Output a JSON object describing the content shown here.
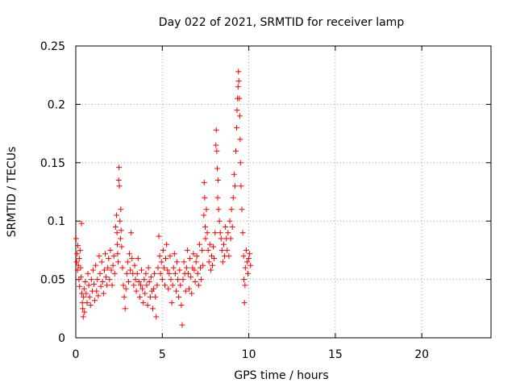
{
  "chart_data": {
    "type": "scatter",
    "title": "Day 022 of 2021, SRMTID for receiver lamp",
    "xlabel": "GPS time / hours",
    "ylabel": "SRMTID / TECUs",
    "xlim": [
      0,
      24
    ],
    "ylim": [
      0,
      0.25
    ],
    "x_ticks": [
      0,
      5,
      10,
      15,
      20
    ],
    "y_ticks": [
      0,
      0.05,
      0.1,
      0.15,
      0.2,
      0.25
    ],
    "x_tick_labels": [
      "0",
      "5",
      "10",
      "15",
      "20"
    ],
    "y_tick_labels": [
      "0",
      "0.05",
      "0.1",
      "0.15",
      "0.2",
      "0.25"
    ],
    "grid": true,
    "marker": "+",
    "color": "#ff0000",
    "series": [
      {
        "name": "SRMTID",
        "points": [
          [
            0.02,
            0.085
          ],
          [
            0.05,
            0.065
          ],
          [
            0.08,
            0.072
          ],
          [
            0.1,
            0.058
          ],
          [
            0.12,
            0.079
          ],
          [
            0.15,
            0.062
          ],
          [
            0.18,
            0.05
          ],
          [
            0.2,
            0.068
          ],
          [
            0.22,
            0.044
          ],
          [
            0.25,
            0.075
          ],
          [
            0.28,
            0.06
          ],
          [
            0.3,
            0.052
          ],
          [
            0.33,
            0.098
          ],
          [
            0.35,
            0.038
          ],
          [
            0.38,
            0.03
          ],
          [
            0.4,
            0.025
          ],
          [
            0.43,
            0.018
          ],
          [
            0.45,
            0.035
          ],
          [
            0.48,
            0.042
          ],
          [
            0.5,
            0.022
          ],
          [
            0.55,
            0.048
          ],
          [
            0.6,
            0.038
          ],
          [
            0.65,
            0.03
          ],
          [
            0.7,
            0.055
          ],
          [
            0.75,
            0.045
          ],
          [
            0.8,
            0.035
          ],
          [
            0.85,
            0.028
          ],
          [
            0.9,
            0.05
          ],
          [
            0.95,
            0.04
          ],
          [
            1.0,
            0.058
          ],
          [
            1.05,
            0.046
          ],
          [
            1.1,
            0.032
          ],
          [
            1.15,
            0.062
          ],
          [
            1.2,
            0.04
          ],
          [
            1.25,
            0.05
          ],
          [
            1.3,
            0.036
          ],
          [
            1.35,
            0.07
          ],
          [
            1.4,
            0.055
          ],
          [
            1.45,
            0.044
          ],
          [
            1.5,
            0.065
          ],
          [
            1.55,
            0.048
          ],
          [
            1.6,
            0.038
          ],
          [
            1.65,
            0.058
          ],
          [
            1.7,
            0.072
          ],
          [
            1.75,
            0.052
          ],
          [
            1.8,
            0.045
          ],
          [
            1.85,
            0.06
          ],
          [
            1.9,
            0.068
          ],
          [
            1.95,
            0.05
          ],
          [
            2.0,
            0.075
          ],
          [
            2.05,
            0.058
          ],
          [
            2.1,
            0.045
          ],
          [
            2.15,
            0.062
          ],
          [
            2.2,
            0.07
          ],
          [
            2.25,
            0.055
          ],
          [
            2.3,
            0.095
          ],
          [
            2.35,
            0.105
          ],
          [
            2.38,
            0.09
          ],
          [
            2.4,
            0.08
          ],
          [
            2.42,
            0.072
          ],
          [
            2.45,
            0.065
          ],
          [
            2.48,
            0.135
          ],
          [
            2.5,
            0.146
          ],
          [
            2.52,
            0.13
          ],
          [
            2.55,
            0.1
          ],
          [
            2.58,
            0.085
          ],
          [
            2.6,
            0.11
          ],
          [
            2.62,
            0.092
          ],
          [
            2.65,
            0.078
          ],
          [
            2.7,
            0.06
          ],
          [
            2.75,
            0.045
          ],
          [
            2.8,
            0.035
          ],
          [
            2.85,
            0.025
          ],
          [
            2.9,
            0.042
          ],
          [
            2.95,
            0.055
          ],
          [
            3.0,
            0.065
          ],
          [
            3.05,
            0.048
          ],
          [
            3.1,
            0.072
          ],
          [
            3.15,
            0.058
          ],
          [
            3.2,
            0.09
          ],
          [
            3.25,
            0.068
          ],
          [
            3.3,
            0.055
          ],
          [
            3.35,
            0.045
          ],
          [
            3.4,
            0.062
          ],
          [
            3.45,
            0.05
          ],
          [
            3.5,
            0.04
          ],
          [
            3.55,
            0.055
          ],
          [
            3.6,
            0.068
          ],
          [
            3.65,
            0.048
          ],
          [
            3.7,
            0.035
          ],
          [
            3.75,
            0.045
          ],
          [
            3.8,
            0.058
          ],
          [
            3.85,
            0.042
          ],
          [
            3.9,
            0.03
          ],
          [
            3.95,
            0.05
          ],
          [
            4.0,
            0.038
          ],
          [
            4.05,
            0.055
          ],
          [
            4.1,
            0.045
          ],
          [
            4.15,
            0.028
          ],
          [
            4.2,
            0.06
          ],
          [
            4.25,
            0.048
          ],
          [
            4.3,
            0.035
          ],
          [
            4.35,
            0.052
          ],
          [
            4.4,
            0.04
          ],
          [
            4.45,
            0.025
          ],
          [
            4.5,
            0.042
          ],
          [
            4.55,
            0.055
          ],
          [
            4.6,
            0.035
          ],
          [
            4.65,
            0.018
          ],
          [
            4.7,
            0.045
          ],
          [
            4.75,
            0.06
          ],
          [
            4.8,
            0.087
          ],
          [
            4.85,
            0.07
          ],
          [
            4.9,
            0.055
          ],
          [
            4.95,
            0.065
          ],
          [
            5.0,
            0.05
          ],
          [
            5.05,
            0.075
          ],
          [
            5.1,
            0.06
          ],
          [
            5.15,
            0.045
          ],
          [
            5.2,
            0.068
          ],
          [
            5.25,
            0.08
          ],
          [
            5.3,
            0.058
          ],
          [
            5.35,
            0.042
          ],
          [
            5.4,
            0.055
          ],
          [
            5.45,
            0.07
          ],
          [
            5.5,
            0.05
          ],
          [
            5.55,
            0.03
          ],
          [
            5.6,
            0.045
          ],
          [
            5.65,
            0.06
          ],
          [
            5.7,
            0.072
          ],
          [
            5.75,
            0.055
          ],
          [
            5.8,
            0.04
          ],
          [
            5.85,
            0.065
          ],
          [
            5.9,
            0.05
          ],
          [
            5.95,
            0.035
          ],
          [
            6.0,
            0.058
          ],
          [
            6.05,
            0.045
          ],
          [
            6.1,
            0.028
          ],
          [
            6.15,
            0.011
          ],
          [
            6.2,
            0.05
          ],
          [
            6.25,
            0.065
          ],
          [
            6.3,
            0.055
          ],
          [
            6.35,
            0.04
          ],
          [
            6.4,
            0.06
          ],
          [
            6.45,
            0.075
          ],
          [
            6.5,
            0.055
          ],
          [
            6.55,
            0.042
          ],
          [
            6.6,
            0.068
          ],
          [
            6.65,
            0.052
          ],
          [
            6.7,
            0.038
          ],
          [
            6.75,
            0.06
          ],
          [
            6.8,
            0.072
          ],
          [
            6.85,
            0.058
          ],
          [
            6.9,
            0.048
          ],
          [
            6.95,
            0.065
          ],
          [
            7.0,
            0.07
          ],
          [
            7.05,
            0.055
          ],
          [
            7.1,
            0.045
          ],
          [
            7.15,
            0.08
          ],
          [
            7.2,
            0.06
          ],
          [
            7.25,
            0.05
          ],
          [
            7.3,
            0.075
          ],
          [
            7.35,
            0.062
          ],
          [
            7.4,
            0.105
          ],
          [
            7.42,
            0.133
          ],
          [
            7.45,
            0.12
          ],
          [
            7.48,
            0.095
          ],
          [
            7.5,
            0.085
          ],
          [
            7.55,
            0.11
          ],
          [
            7.6,
            0.09
          ],
          [
            7.65,
            0.075
          ],
          [
            7.7,
            0.065
          ],
          [
            7.75,
            0.08
          ],
          [
            7.8,
            0.058
          ],
          [
            7.85,
            0.07
          ],
          [
            7.9,
            0.062
          ],
          [
            7.95,
            0.078
          ],
          [
            8.0,
            0.068
          ],
          [
            8.05,
            0.09
          ],
          [
            8.1,
            0.165
          ],
          [
            8.12,
            0.178
          ],
          [
            8.15,
            0.16
          ],
          [
            8.18,
            0.145
          ],
          [
            8.2,
            0.12
          ],
          [
            8.22,
            0.135
          ],
          [
            8.25,
            0.11
          ],
          [
            8.3,
            0.1
          ],
          [
            8.35,
            0.09
          ],
          [
            8.4,
            0.085
          ],
          [
            8.45,
            0.075
          ],
          [
            8.5,
            0.065
          ],
          [
            8.55,
            0.08
          ],
          [
            8.6,
            0.07
          ],
          [
            8.65,
            0.095
          ],
          [
            8.7,
            0.085
          ],
          [
            8.75,
            0.075
          ],
          [
            8.8,
            0.09
          ],
          [
            8.85,
            0.07
          ],
          [
            8.9,
            0.1
          ],
          [
            8.95,
            0.085
          ],
          [
            9.0,
            0.11
          ],
          [
            9.05,
            0.095
          ],
          [
            9.1,
            0.12
          ],
          [
            9.15,
            0.14
          ],
          [
            9.2,
            0.13
          ],
          [
            9.25,
            0.16
          ],
          [
            9.3,
            0.18
          ],
          [
            9.32,
            0.195
          ],
          [
            9.35,
            0.205
          ],
          [
            9.38,
            0.215
          ],
          [
            9.4,
            0.228
          ],
          [
            9.42,
            0.22
          ],
          [
            9.45,
            0.205
          ],
          [
            9.48,
            0.19
          ],
          [
            9.5,
            0.17
          ],
          [
            9.52,
            0.15
          ],
          [
            9.55,
            0.13
          ],
          [
            9.6,
            0.11
          ],
          [
            9.65,
            0.09
          ],
          [
            9.7,
            0.07
          ],
          [
            9.72,
            0.05
          ],
          [
            9.75,
            0.03
          ],
          [
            9.78,
            0.045
          ],
          [
            9.8,
            0.06
          ],
          [
            9.85,
            0.075
          ],
          [
            9.9,
            0.065
          ],
          [
            9.95,
            0.055
          ],
          [
            10.0,
            0.068
          ],
          [
            10.05,
            0.072
          ],
          [
            10.1,
            0.062
          ]
        ]
      }
    ]
  }
}
